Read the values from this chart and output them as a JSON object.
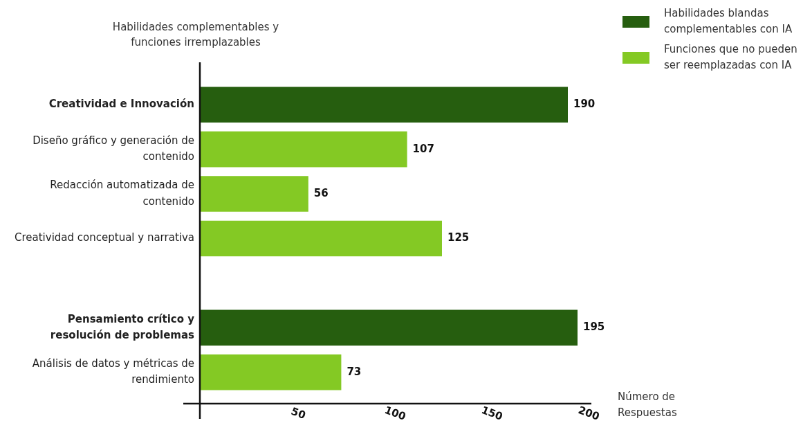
{
  "chart_data": {
    "type": "bar",
    "orientation": "horizontal",
    "ylabel": "Habilidades complementables y funciones irremplazables",
    "xlabel": "Número de Respuestas",
    "categories": [
      "Creatividad e Innovación",
      "Diseño gráfico y generación de contenido",
      "Redacción automatizada de contenido",
      "Creatividad conceptual y narrativa",
      null,
      "Pensamiento crítico y resolución de problemas",
      "Análisis de datos y métricas de rendimiento"
    ],
    "series": [
      {
        "name": "Habilidades blandas complementables con IA",
        "color": "#265e0f",
        "values": [
          190,
          null,
          null,
          null,
          null,
          195,
          null
        ]
      },
      {
        "name": "Funciones que no pueden ser reemplazadas con IA",
        "color": "#84c924",
        "values": [
          null,
          107,
          56,
          125,
          null,
          null,
          73
        ]
      }
    ],
    "xlim": [
      0,
      200
    ],
    "xticks": [
      50,
      100,
      150,
      200
    ],
    "data_labels": true,
    "legend": "top right"
  }
}
